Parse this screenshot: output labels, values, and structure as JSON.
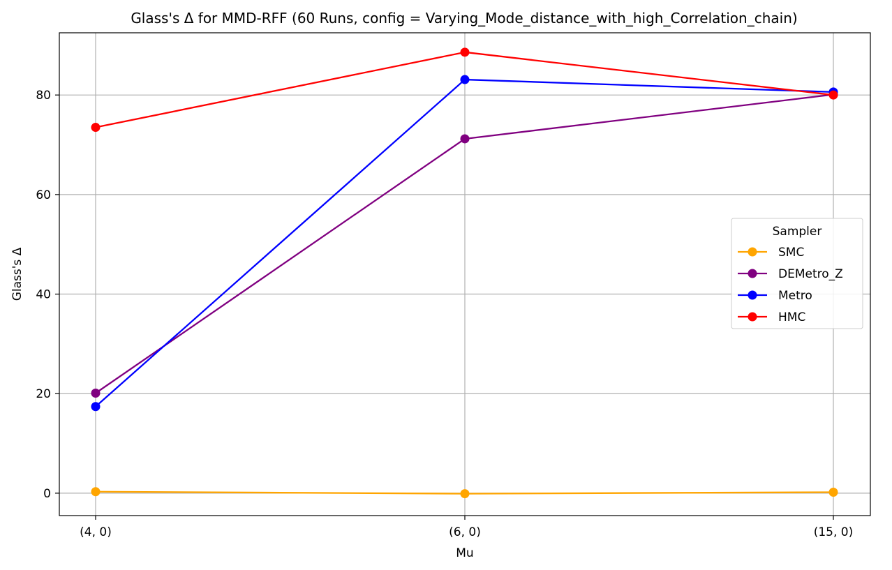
{
  "chart_data": {
    "type": "line",
    "title": "Glass's Δ for MMD-RFF (60 Runs, config = Varying_Mode_distance_with_high_Correlation_chain)",
    "xlabel": "Mu",
    "ylabel": "Glass's Δ",
    "categories": [
      "(4, 0)",
      "(6, 0)",
      "(15, 0)"
    ],
    "ylim": [
      -4.5,
      92.5
    ],
    "yticks": [
      0,
      20,
      40,
      60,
      80
    ],
    "grid": true,
    "legend": {
      "title": "Sampler",
      "placement": "center-right"
    },
    "series": [
      {
        "name": "SMC",
        "color": "#FFA500",
        "values": [
          0.3,
          -0.1,
          0.2
        ]
      },
      {
        "name": "DEMetro_Z",
        "color": "#800080",
        "values": [
          20.1,
          71.2,
          80.1
        ]
      },
      {
        "name": "Metro",
        "color": "#0000FF",
        "values": [
          17.4,
          83.1,
          80.6
        ]
      },
      {
        "name": "HMC",
        "color": "#FF0000",
        "values": [
          73.5,
          88.6,
          80.0
        ]
      }
    ]
  }
}
